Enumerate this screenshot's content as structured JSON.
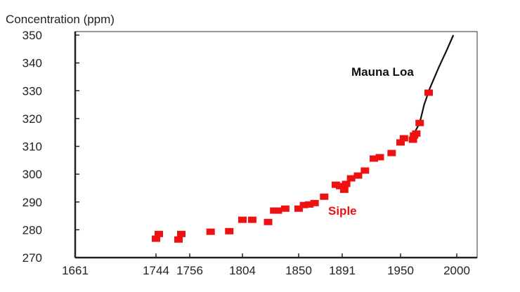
{
  "chart_data": {
    "type": "scatter",
    "title": "Concentration (ppm)",
    "xlabel": "",
    "ylabel": "",
    "ylim": [
      270,
      350
    ],
    "yticks": [
      270,
      280,
      290,
      300,
      310,
      320,
      330,
      340,
      350
    ],
    "xticks": [
      1661,
      1744,
      1756,
      1804,
      1850,
      1891,
      1950,
      2000
    ],
    "x_axis_note": "tick labels unevenly spaced",
    "grid": false,
    "series": [
      {
        "name": "Siple",
        "kind": "scatter",
        "color": "#ee1111",
        "x": [
          1744,
          1745,
          1752,
          1753,
          1775,
          1792,
          1804,
          1812,
          1825,
          1830,
          1833,
          1839,
          1850,
          1855,
          1860,
          1865,
          1874,
          1885,
          1889,
          1893,
          1895,
          1900,
          1907,
          1914,
          1923,
          1929,
          1941,
          1950,
          1953,
          1961,
          1962,
          1964,
          1967,
          1975
        ],
        "y": [
          276.8,
          278.5,
          276.5,
          278.5,
          279.3,
          279.5,
          283.6,
          283.6,
          282.8,
          286.9,
          286.9,
          287.6,
          287.6,
          288.9,
          289.1,
          289.6,
          291.9,
          296.2,
          295.7,
          294.4,
          296.5,
          298.5,
          299.5,
          301.3,
          305.6,
          306.1,
          307.6,
          311.4,
          312.9,
          312.4,
          313.9,
          314.6,
          318.4,
          329.3
        ]
      },
      {
        "name": "Mauna Loa",
        "kind": "line",
        "color": "#111111",
        "x": [
          1962,
          1967,
          1971,
          1976,
          1984,
          1991,
          1997
        ],
        "y": [
          314.6,
          318.4,
          325,
          330.8,
          338.4,
          344.5,
          350
        ]
      }
    ]
  }
}
